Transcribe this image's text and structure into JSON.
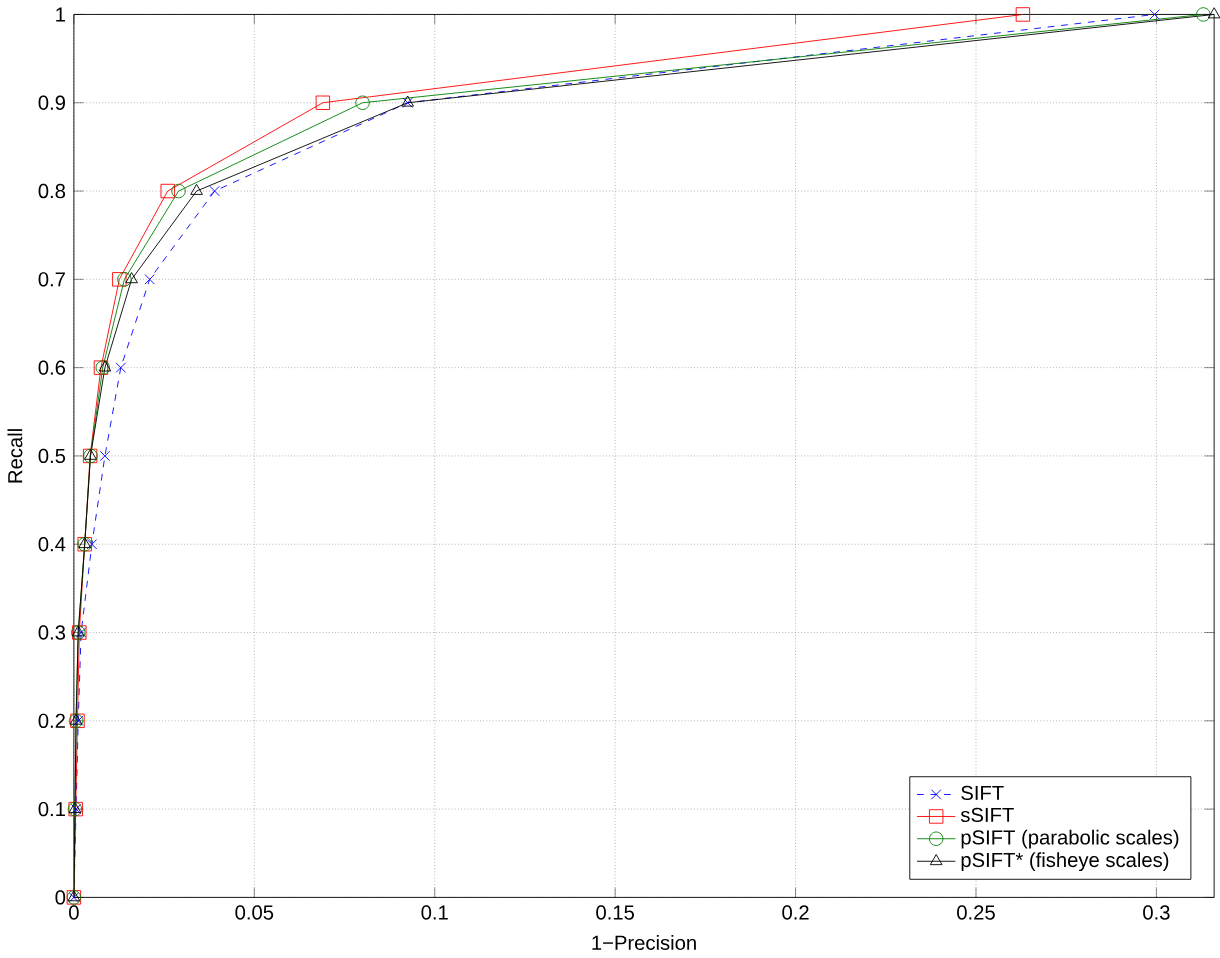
{
  "chart_data": {
    "type": "line",
    "xlabel": "1−Precision",
    "ylabel": "Recall",
    "x": [
      0,
      0.0005,
      0.001,
      0.0015,
      0.003,
      0.0045,
      0.0075,
      0.0126,
      0.026,
      0.069,
      0.263
    ],
    "series": [
      {
        "name": "SIFT",
        "color": "#0000ff",
        "marker": "cross",
        "line_style": "dashed",
        "x": [
          0,
          0.0006,
          0.0012,
          0.002,
          0.005,
          0.0086,
          0.013,
          0.021,
          0.039,
          0.0925,
          0.2995
        ],
        "values": [
          0,
          0.1,
          0.2,
          0.3,
          0.4,
          0.5,
          0.6,
          0.7,
          0.8,
          0.9,
          1.0
        ]
      },
      {
        "name": "sSIFT",
        "color": "#ff0000",
        "marker": "square",
        "line_style": "solid",
        "values": [
          0,
          0.1,
          0.2,
          0.3,
          0.4,
          0.5,
          0.6,
          0.7,
          0.8,
          0.9,
          1.0
        ]
      },
      {
        "name": "pSIFT (parabolic scales)",
        "color": "#008000",
        "marker": "circle",
        "line_style": "solid",
        "x": [
          0,
          0.0003,
          0.0006,
          0.0012,
          0.003,
          0.0046,
          0.008,
          0.014,
          0.029,
          0.08,
          0.313
        ],
        "values": [
          0,
          0.1,
          0.2,
          0.3,
          0.4,
          0.5,
          0.6,
          0.7,
          0.8,
          0.9,
          1.0
        ]
      },
      {
        "name": "pSIFT* (fisheye scales)",
        "color": "#000000",
        "marker": "triangle",
        "line_style": "solid",
        "x": [
          0,
          0.0003,
          0.0006,
          0.0012,
          0.003,
          0.0046,
          0.0086,
          0.016,
          0.034,
          0.0925,
          0.316
        ],
        "values": [
          0,
          0.1,
          0.2,
          0.3,
          0.4,
          0.5,
          0.6,
          0.7,
          0.8,
          0.9,
          1.0
        ]
      }
    ],
    "xlim": [
      0,
      0.316
    ],
    "ylim": [
      0,
      1
    ],
    "xticks": [
      0,
      0.05,
      0.1,
      0.15,
      0.2,
      0.25,
      0.3
    ],
    "yticks": [
      0,
      0.1,
      0.2,
      0.3,
      0.4,
      0.5,
      0.6,
      0.7,
      0.8,
      0.9,
      1
    ],
    "grid": true,
    "legend": "bottom right"
  }
}
